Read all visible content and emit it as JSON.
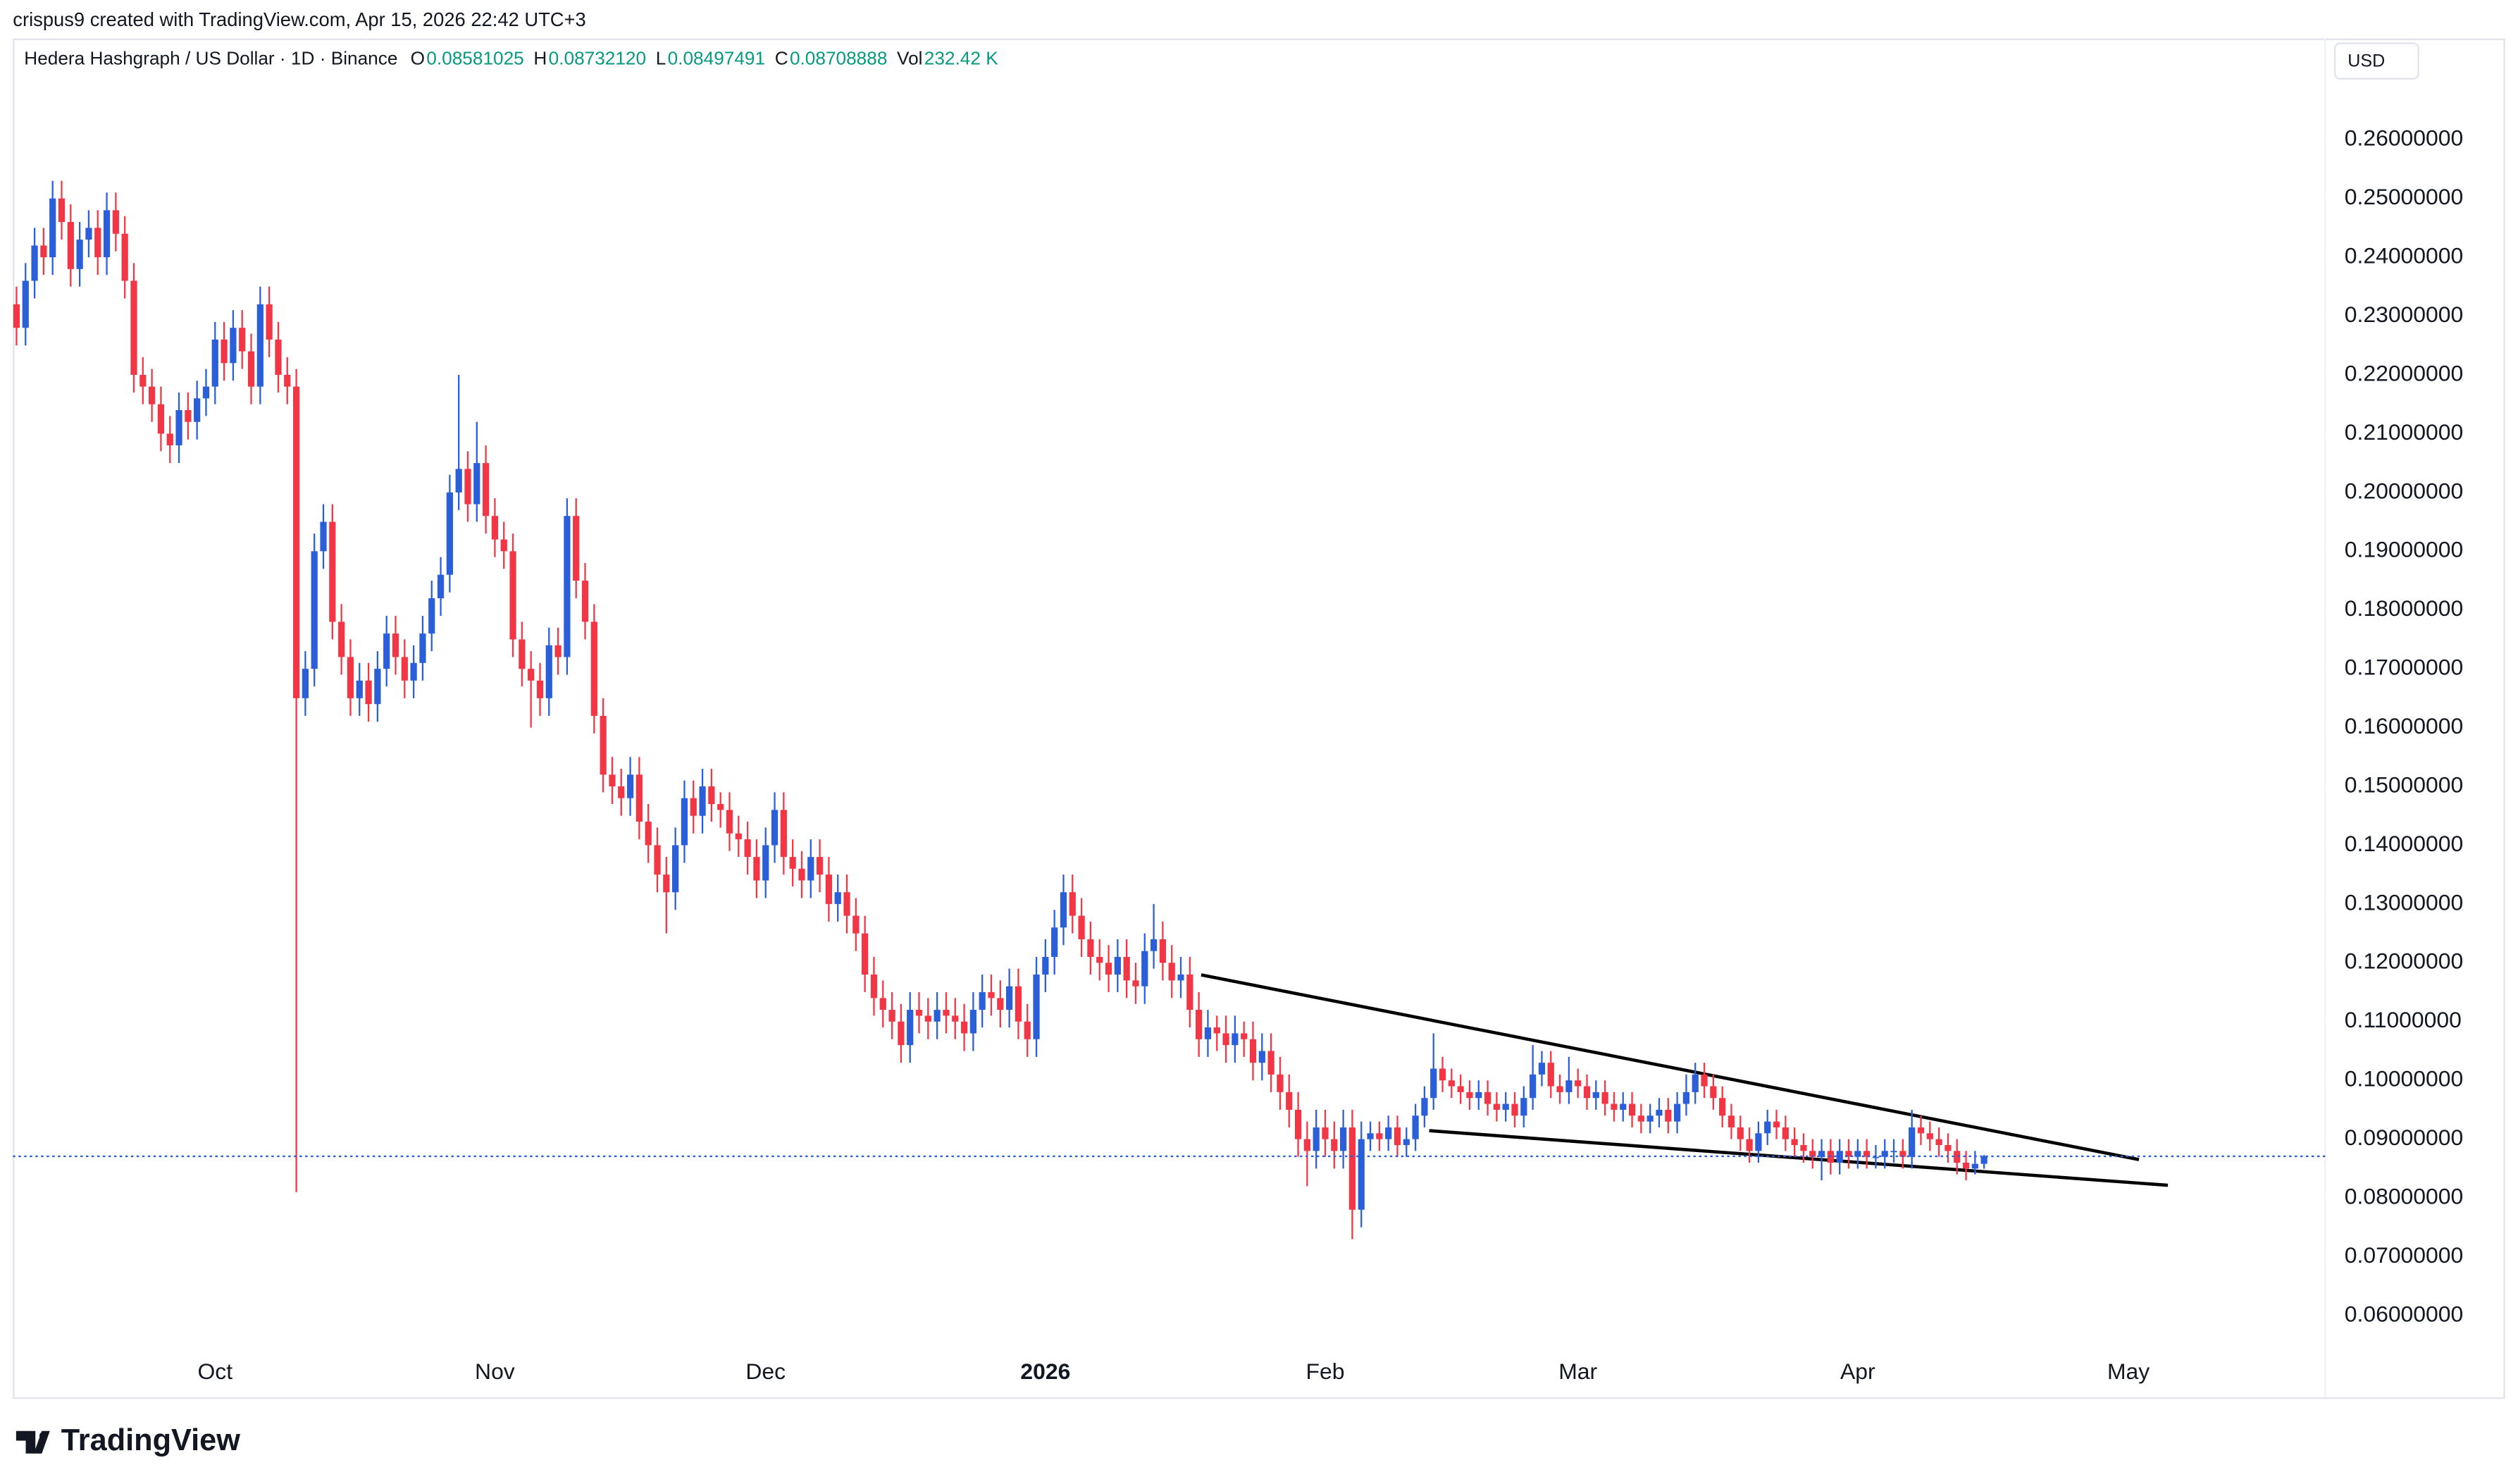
{
  "chart_data": {
    "type": "candlestick",
    "attribution": "crispus9 created with TradingView.com, Apr 15, 2026 22:42 UTC+3",
    "title": "Hedera Hashgraph / US Dollar · 1D · Binance",
    "ohlc_legend": [
      {
        "label": "O",
        "value": "0.08581025"
      },
      {
        "label": "H",
        "value": "0.08732120"
      },
      {
        "label": "L",
        "value": "0.08497491"
      },
      {
        "label": "C",
        "value": "0.08708888"
      },
      {
        "label": "Vol",
        "value": "232.42 K"
      }
    ],
    "currency": "USD",
    "brand": "TradingView",
    "up_color": "#2a5fd9",
    "down_color": "#f23645",
    "last_price_color": "#2a5fd9",
    "grid": false,
    "xlim": [
      -0.4,
      255.8
    ],
    "xticks": [
      {
        "value": 22,
        "label": "Oct"
      },
      {
        "value": 53,
        "label": "Nov"
      },
      {
        "value": 83,
        "label": "Dec"
      },
      {
        "value": 114,
        "label": "2026"
      },
      {
        "value": 145,
        "label": "Feb"
      },
      {
        "value": 173,
        "label": "Mar"
      },
      {
        "value": 204,
        "label": "Apr"
      },
      {
        "value": 234,
        "label": "May"
      }
    ],
    "ylim": [
      0.0461,
      0.2772
    ],
    "yticks": [
      {
        "value": 0.06,
        "label": "0.06000000"
      },
      {
        "value": 0.07,
        "label": "0.07000000"
      },
      {
        "value": 0.08,
        "label": "0.08000000"
      },
      {
        "value": 0.09,
        "label": "0.09000000"
      },
      {
        "value": 0.1,
        "label": "0.10000000"
      },
      {
        "value": 0.11,
        "label": "0.11000000"
      },
      {
        "value": 0.12,
        "label": "0.12000000"
      },
      {
        "value": 0.13,
        "label": "0.13000000"
      },
      {
        "value": 0.14,
        "label": "0.14000000"
      },
      {
        "value": 0.15,
        "label": "0.15000000"
      },
      {
        "value": 0.16,
        "label": "0.16000000"
      },
      {
        "value": 0.17,
        "label": "0.17000000"
      },
      {
        "value": 0.18,
        "label": "0.18000000"
      },
      {
        "value": 0.19,
        "label": "0.19000000"
      },
      {
        "value": 0.2,
        "label": "0.20000000"
      },
      {
        "value": 0.21,
        "label": "0.21000000"
      },
      {
        "value": 0.22,
        "label": "0.22000000"
      },
      {
        "value": 0.23,
        "label": "0.23000000"
      },
      {
        "value": 0.24,
        "label": "0.24000000"
      },
      {
        "value": 0.25,
        "label": "0.25000000"
      },
      {
        "value": 0.26,
        "label": "0.26000000"
      }
    ],
    "open": [
      0.232,
      0.228,
      0.236,
      0.242,
      0.24,
      0.25,
      0.246,
      0.238,
      0.243,
      0.245,
      0.24,
      0.248,
      0.244,
      0.236,
      0.22,
      0.218,
      0.215,
      0.21,
      0.208,
      0.214,
      0.212,
      0.216,
      0.218,
      0.226,
      0.222,
      0.228,
      0.224,
      0.218,
      0.232,
      0.226,
      0.22,
      0.218,
      0.165,
      0.17,
      0.19,
      0.195,
      0.178,
      0.172,
      0.165,
      0.168,
      0.164,
      0.17,
      0.176,
      0.172,
      0.168,
      0.171,
      0.176,
      0.182,
      0.186,
      0.2,
      0.204,
      0.198,
      0.205,
      0.196,
      0.192,
      0.19,
      0.175,
      0.17,
      0.168,
      0.165,
      0.174,
      0.172,
      0.196,
      0.185,
      0.178,
      0.162,
      0.152,
      0.15,
      0.148,
      0.152,
      0.144,
      0.14,
      0.135,
      0.132,
      0.14,
      0.148,
      0.145,
      0.15,
      0.147,
      0.146,
      0.142,
      0.141,
      0.138,
      0.134,
      0.14,
      0.146,
      0.138,
      0.136,
      0.134,
      0.138,
      0.135,
      0.13,
      0.132,
      0.128,
      0.125,
      0.118,
      0.114,
      0.112,
      0.11,
      0.106,
      0.112,
      0.111,
      0.11,
      0.112,
      0.111,
      0.11,
      0.108,
      0.112,
      0.115,
      0.114,
      0.112,
      0.116,
      0.11,
      0.107,
      0.118,
      0.121,
      0.126,
      0.132,
      0.128,
      0.124,
      0.121,
      0.12,
      0.118,
      0.121,
      0.117,
      0.116,
      0.122,
      0.124,
      0.12,
      0.117,
      0.118,
      0.112,
      0.107,
      0.109,
      0.108,
      0.106,
      0.108,
      0.107,
      0.103,
      0.105,
      0.101,
      0.098,
      0.095,
      0.09,
      0.088,
      0.092,
      0.09,
      0.088,
      0.092,
      0.078,
      0.09,
      0.091,
      0.09,
      0.092,
      0.089,
      0.09,
      0.094,
      0.097,
      0.102,
      0.1,
      0.099,
      0.098,
      0.097,
      0.098,
      0.096,
      0.095,
      0.096,
      0.094,
      0.097,
      0.101,
      0.103,
      0.099,
      0.098,
      0.1,
      0.099,
      0.097,
      0.098,
      0.096,
      0.095,
      0.096,
      0.094,
      0.093,
      0.094,
      0.095,
      0.093,
      0.096,
      0.098,
      0.101,
      0.099,
      0.097,
      0.094,
      0.092,
      0.09,
      0.088,
      0.091,
      0.093,
      0.092,
      0.09,
      0.089,
      0.088,
      0.087,
      0.088,
      0.086,
      0.088,
      0.087,
      0.088,
      0.087,
      0.087,
      0.088,
      0.088,
      0.087,
      0.092,
      0.091,
      0.09,
      0.089,
      0.088,
      0.086,
      0.085,
      0.08581025
    ],
    "high": [
      0.235,
      0.239,
      0.245,
      0.245,
      0.253,
      0.253,
      0.249,
      0.246,
      0.248,
      0.248,
      0.251,
      0.251,
      0.247,
      0.239,
      0.223,
      0.221,
      0.218,
      0.213,
      0.217,
      0.217,
      0.219,
      0.221,
      0.229,
      0.229,
      0.231,
      0.231,
      0.227,
      0.235,
      0.235,
      0.229,
      0.223,
      0.221,
      0.173,
      0.193,
      0.198,
      0.198,
      0.181,
      0.175,
      0.171,
      0.171,
      0.173,
      0.179,
      0.179,
      0.175,
      0.174,
      0.179,
      0.185,
      0.189,
      0.203,
      0.22,
      0.207,
      0.212,
      0.208,
      0.199,
      0.195,
      0.193,
      0.178,
      0.173,
      0.171,
      0.177,
      0.177,
      0.199,
      0.199,
      0.188,
      0.181,
      0.165,
      0.155,
      0.153,
      0.155,
      0.155,
      0.147,
      0.143,
      0.138,
      0.143,
      0.151,
      0.151,
      0.153,
      0.153,
      0.149,
      0.149,
      0.145,
      0.144,
      0.141,
      0.143,
      0.149,
      0.149,
      0.141,
      0.139,
      0.141,
      0.141,
      0.138,
      0.135,
      0.135,
      0.131,
      0.128,
      0.121,
      0.117,
      0.115,
      0.113,
      0.115,
      0.115,
      0.114,
      0.115,
      0.115,
      0.114,
      0.113,
      0.115,
      0.118,
      0.118,
      0.117,
      0.119,
      0.119,
      0.113,
      0.121,
      0.124,
      0.129,
      0.135,
      0.135,
      0.131,
      0.127,
      0.124,
      0.123,
      0.124,
      0.124,
      0.12,
      0.125,
      0.13,
      0.127,
      0.123,
      0.121,
      0.121,
      0.115,
      0.112,
      0.111,
      0.111,
      0.111,
      0.11,
      0.11,
      0.108,
      0.108,
      0.104,
      0.101,
      0.098,
      0.093,
      0.095,
      0.095,
      0.093,
      0.095,
      0.095,
      0.093,
      0.093,
      0.093,
      0.094,
      0.094,
      0.092,
      0.096,
      0.099,
      0.108,
      0.104,
      0.102,
      0.101,
      0.1,
      0.1,
      0.1,
      0.098,
      0.098,
      0.098,
      0.099,
      0.106,
      0.105,
      0.105,
      0.101,
      0.104,
      0.102,
      0.101,
      0.1,
      0.1,
      0.098,
      0.098,
      0.098,
      0.096,
      0.096,
      0.097,
      0.097,
      0.098,
      0.101,
      0.103,
      0.103,
      0.101,
      0.099,
      0.096,
      0.094,
      0.092,
      0.093,
      0.095,
      0.095,
      0.094,
      0.092,
      0.091,
      0.09,
      0.09,
      0.09,
      0.09,
      0.09,
      0.09,
      0.09,
      0.089,
      0.09,
      0.09,
      0.09,
      0.095,
      0.094,
      0.093,
      0.092,
      0.091,
      0.09,
      0.088,
      0.088,
      0.0873212
    ],
    "low": [
      0.225,
      0.225,
      0.233,
      0.237,
      0.237,
      0.243,
      0.235,
      0.235,
      0.24,
      0.237,
      0.237,
      0.241,
      0.233,
      0.217,
      0.215,
      0.212,
      0.207,
      0.205,
      0.205,
      0.209,
      0.209,
      0.213,
      0.215,
      0.219,
      0.219,
      0.221,
      0.215,
      0.215,
      0.223,
      0.217,
      0.215,
      0.081,
      0.162,
      0.167,
      0.187,
      0.175,
      0.169,
      0.162,
      0.162,
      0.161,
      0.161,
      0.167,
      0.169,
      0.165,
      0.165,
      0.168,
      0.173,
      0.179,
      0.183,
      0.197,
      0.195,
      0.195,
      0.193,
      0.189,
      0.187,
      0.172,
      0.167,
      0.16,
      0.162,
      0.162,
      0.169,
      0.169,
      0.182,
      0.175,
      0.159,
      0.149,
      0.147,
      0.145,
      0.145,
      0.141,
      0.137,
      0.132,
      0.125,
      0.129,
      0.137,
      0.142,
      0.142,
      0.144,
      0.143,
      0.139,
      0.138,
      0.135,
      0.131,
      0.131,
      0.137,
      0.135,
      0.133,
      0.131,
      0.131,
      0.132,
      0.127,
      0.127,
      0.125,
      0.122,
      0.115,
      0.111,
      0.109,
      0.107,
      0.103,
      0.103,
      0.108,
      0.107,
      0.107,
      0.108,
      0.107,
      0.105,
      0.105,
      0.109,
      0.111,
      0.109,
      0.109,
      0.107,
      0.104,
      0.104,
      0.115,
      0.118,
      0.123,
      0.125,
      0.121,
      0.118,
      0.117,
      0.115,
      0.115,
      0.114,
      0.113,
      0.113,
      0.119,
      0.117,
      0.114,
      0.114,
      0.109,
      0.104,
      0.104,
      0.105,
      0.103,
      0.103,
      0.104,
      0.1,
      0.1,
      0.098,
      0.095,
      0.092,
      0.087,
      0.082,
      0.085,
      0.087,
      0.085,
      0.085,
      0.073,
      0.075,
      0.088,
      0.088,
      0.088,
      0.087,
      0.087,
      0.088,
      0.092,
      0.095,
      0.098,
      0.097,
      0.096,
      0.095,
      0.095,
      0.094,
      0.093,
      0.093,
      0.092,
      0.092,
      0.095,
      0.099,
      0.097,
      0.096,
      0.096,
      0.097,
      0.095,
      0.095,
      0.094,
      0.093,
      0.093,
      0.092,
      0.091,
      0.091,
      0.092,
      0.091,
      0.091,
      0.094,
      0.096,
      0.097,
      0.095,
      0.092,
      0.09,
      0.088,
      0.086,
      0.086,
      0.089,
      0.09,
      0.088,
      0.087,
      0.086,
      0.085,
      0.083,
      0.084,
      0.084,
      0.085,
      0.085,
      0.085,
      0.085,
      0.085,
      0.086,
      0.085,
      0.085,
      0.089,
      0.088,
      0.087,
      0.086,
      0.084,
      0.083,
      0.084,
      0.08497491
    ],
    "close": [
      0.228,
      0.236,
      0.242,
      0.24,
      0.25,
      0.246,
      0.238,
      0.243,
      0.245,
      0.24,
      0.248,
      0.244,
      0.236,
      0.22,
      0.218,
      0.215,
      0.21,
      0.208,
      0.214,
      0.212,
      0.216,
      0.218,
      0.226,
      0.222,
      0.228,
      0.224,
      0.218,
      0.232,
      0.226,
      0.22,
      0.218,
      0.165,
      0.17,
      0.19,
      0.195,
      0.178,
      0.172,
      0.165,
      0.168,
      0.164,
      0.17,
      0.176,
      0.172,
      0.168,
      0.171,
      0.176,
      0.182,
      0.186,
      0.2,
      0.204,
      0.198,
      0.205,
      0.196,
      0.192,
      0.19,
      0.175,
      0.17,
      0.168,
      0.165,
      0.174,
      0.172,
      0.196,
      0.185,
      0.178,
      0.162,
      0.152,
      0.15,
      0.148,
      0.152,
      0.144,
      0.14,
      0.135,
      0.132,
      0.14,
      0.148,
      0.145,
      0.15,
      0.147,
      0.146,
      0.142,
      0.141,
      0.138,
      0.134,
      0.14,
      0.146,
      0.138,
      0.136,
      0.134,
      0.138,
      0.135,
      0.13,
      0.132,
      0.128,
      0.125,
      0.118,
      0.114,
      0.112,
      0.11,
      0.106,
      0.112,
      0.111,
      0.11,
      0.112,
      0.111,
      0.11,
      0.108,
      0.112,
      0.115,
      0.114,
      0.112,
      0.116,
      0.11,
      0.107,
      0.118,
      0.121,
      0.126,
      0.132,
      0.128,
      0.124,
      0.121,
      0.12,
      0.118,
      0.121,
      0.117,
      0.116,
      0.122,
      0.124,
      0.12,
      0.117,
      0.118,
      0.112,
      0.107,
      0.109,
      0.108,
      0.106,
      0.108,
      0.107,
      0.103,
      0.105,
      0.101,
      0.098,
      0.095,
      0.09,
      0.088,
      0.092,
      0.09,
      0.088,
      0.092,
      0.078,
      0.09,
      0.091,
      0.09,
      0.092,
      0.089,
      0.09,
      0.094,
      0.097,
      0.102,
      0.1,
      0.099,
      0.098,
      0.097,
      0.098,
      0.096,
      0.095,
      0.096,
      0.094,
      0.097,
      0.101,
      0.103,
      0.099,
      0.098,
      0.1,
      0.099,
      0.097,
      0.098,
      0.096,
      0.095,
      0.096,
      0.094,
      0.093,
      0.094,
      0.095,
      0.093,
      0.096,
      0.098,
      0.101,
      0.099,
      0.097,
      0.094,
      0.092,
      0.09,
      0.088,
      0.091,
      0.093,
      0.092,
      0.09,
      0.089,
      0.088,
      0.087,
      0.088,
      0.086,
      0.088,
      0.087,
      0.088,
      0.087,
      0.087,
      0.088,
      0.088,
      0.087,
      0.092,
      0.091,
      0.09,
      0.089,
      0.088,
      0.086,
      0.085,
      0.08581025,
      0.08708888
    ]
  }
}
